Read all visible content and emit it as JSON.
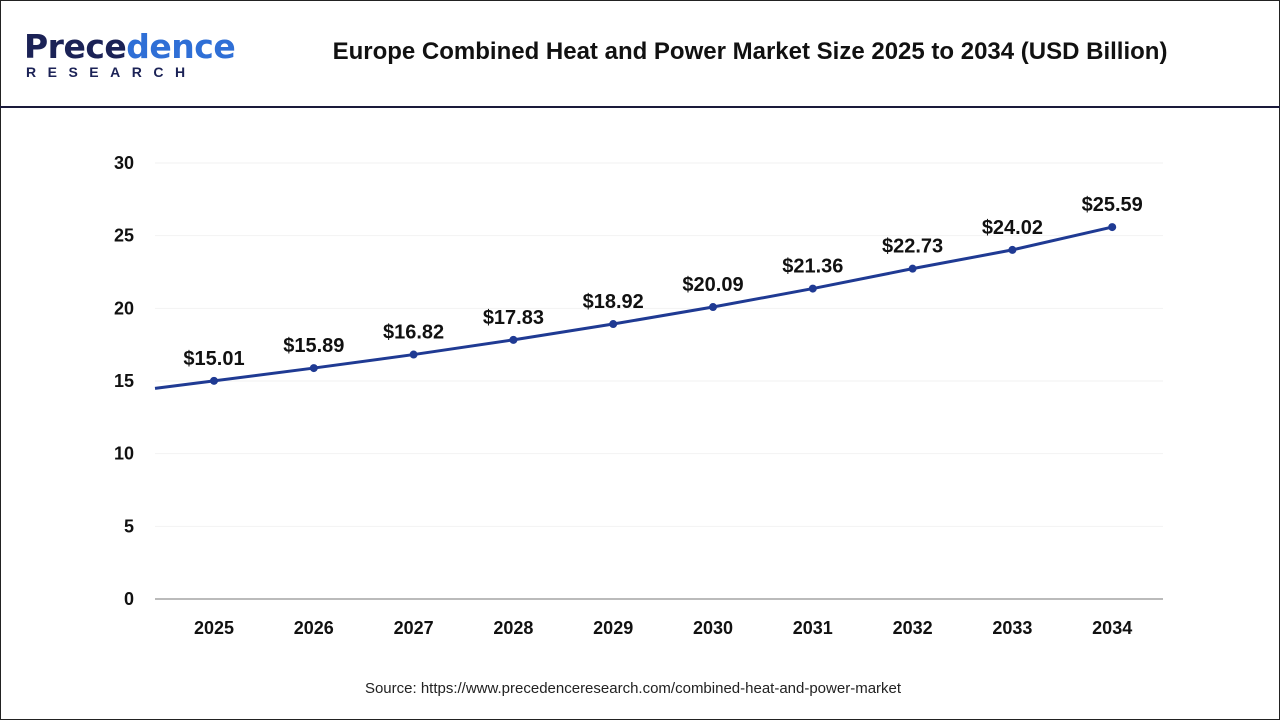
{
  "header": {
    "logo_text_main_a": "Prece",
    "logo_text_main_b": "dence",
    "logo_text_sub": "RESEARCH",
    "title": "Europe Combined Heat and Power Market Size 2025 to 2034 (USD Billion)"
  },
  "source": "Source: https://www.precedenceresearch.com/combined-heat-and-power-market",
  "chart_data": {
    "type": "line",
    "title": "Europe Combined Heat and Power Market Size 2025 to 2034 (USD Billion)",
    "categories": [
      "2025",
      "2026",
      "2027",
      "2028",
      "2029",
      "2030",
      "2031",
      "2032",
      "2033",
      "2034"
    ],
    "values": [
      15.01,
      15.89,
      16.82,
      17.83,
      18.92,
      20.09,
      21.36,
      22.73,
      24.02,
      25.59
    ],
    "data_labels": [
      "$15.01",
      "$15.89",
      "$16.82",
      "$17.83",
      "$18.92",
      "$20.09",
      "$21.36",
      "$22.73",
      "$24.02",
      "$25.59"
    ],
    "yticks": [
      "0",
      "5",
      "10",
      "15",
      "20",
      "25",
      "30"
    ],
    "ylim": [
      0,
      30
    ],
    "grid": true,
    "xlabel": "",
    "ylabel": "",
    "line_color": "#1f3a93"
  }
}
